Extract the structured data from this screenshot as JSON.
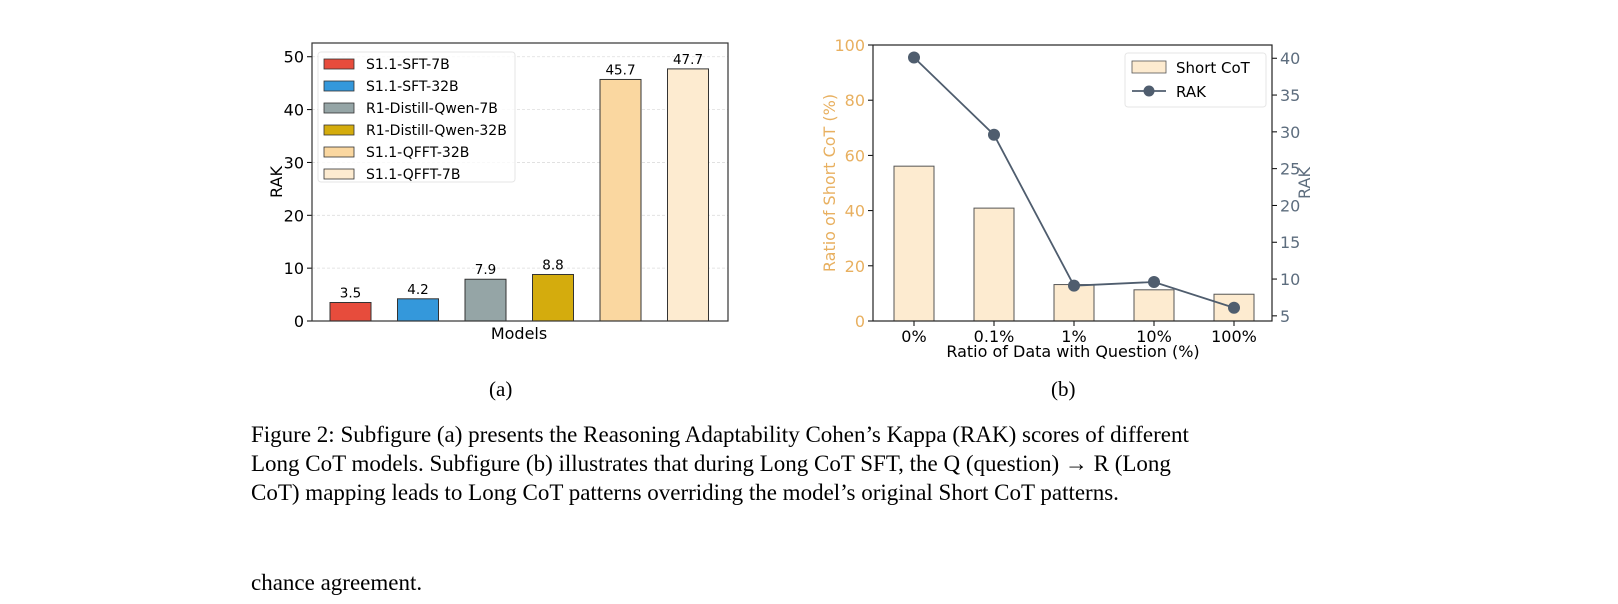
{
  "chart_data": [
    {
      "type": "bar",
      "subfigure_label": "(a)",
      "xlabel": "Models",
      "ylabel": "RAK",
      "ylim": [
        0,
        52.6
      ],
      "yticks": [
        0,
        10,
        20,
        30,
        40,
        50
      ],
      "grid": true,
      "legend_placement": "top-left",
      "categories": [
        "S1.1-SFT-7B",
        "S1.1-SFT-32B",
        "R1-Distill-Qwen-7B",
        "R1-Distill-Qwen-32B",
        "S1.1-QFFT-32B",
        "S1.1-QFFT-7B"
      ],
      "values": [
        3.5,
        4.2,
        7.9,
        8.8,
        45.7,
        47.7
      ],
      "data_labels": [
        "3.5",
        "4.2",
        "7.9",
        "8.8",
        "45.7",
        "47.7"
      ],
      "colors": [
        "#e74c3c",
        "#3498db",
        "#95a5a6",
        "#d4ac0d",
        "#fad7a0",
        "#fdebd0"
      ]
    },
    {
      "type": "bar+line",
      "subfigure_label": "(b)",
      "xlabel": "Ratio of Data with Question (%)",
      "ylabel_left": "Ratio of Short CoT (%)",
      "ylabel_right": "RAK",
      "categories": [
        "0%",
        "0.1%",
        "1%",
        "10%",
        "100%"
      ],
      "ylim_left": [
        0,
        100
      ],
      "yticks_left": [
        0,
        20,
        40,
        60,
        80,
        100
      ],
      "ylim_right": [
        4.3,
        41.8
      ],
      "yticks_right": [
        5,
        10,
        15,
        20,
        25,
        30,
        35,
        40
      ],
      "legend_placement": "top-right",
      "series": [
        {
          "name": "Short CoT",
          "kind": "bar",
          "axis": "left",
          "values": [
            56.1,
            40.9,
            13.2,
            11.3,
            9.7
          ],
          "color": "#fdebd0"
        },
        {
          "name": "RAK",
          "kind": "line",
          "axis": "right",
          "values": [
            40.1,
            29.6,
            9.1,
            9.6,
            6.1
          ],
          "color": "#4f5d6e"
        }
      ],
      "left_axis_color": "#e8b060",
      "right_axis_color": "#5d6d7e"
    }
  ],
  "caption": {
    "lines": [
      "Figure 2: Subfigure (a) presents the Reasoning Adaptability Cohen’s Kappa (RAK) scores of different",
      "Long CoT models. Subfigure (b) illustrates that during Long CoT SFT, the Q (question) → R (Long",
      "CoT) mapping leads to Long CoT patterns overriding the model’s original Short CoT patterns."
    ]
  },
  "body_text_cutoff": "chance agreement."
}
